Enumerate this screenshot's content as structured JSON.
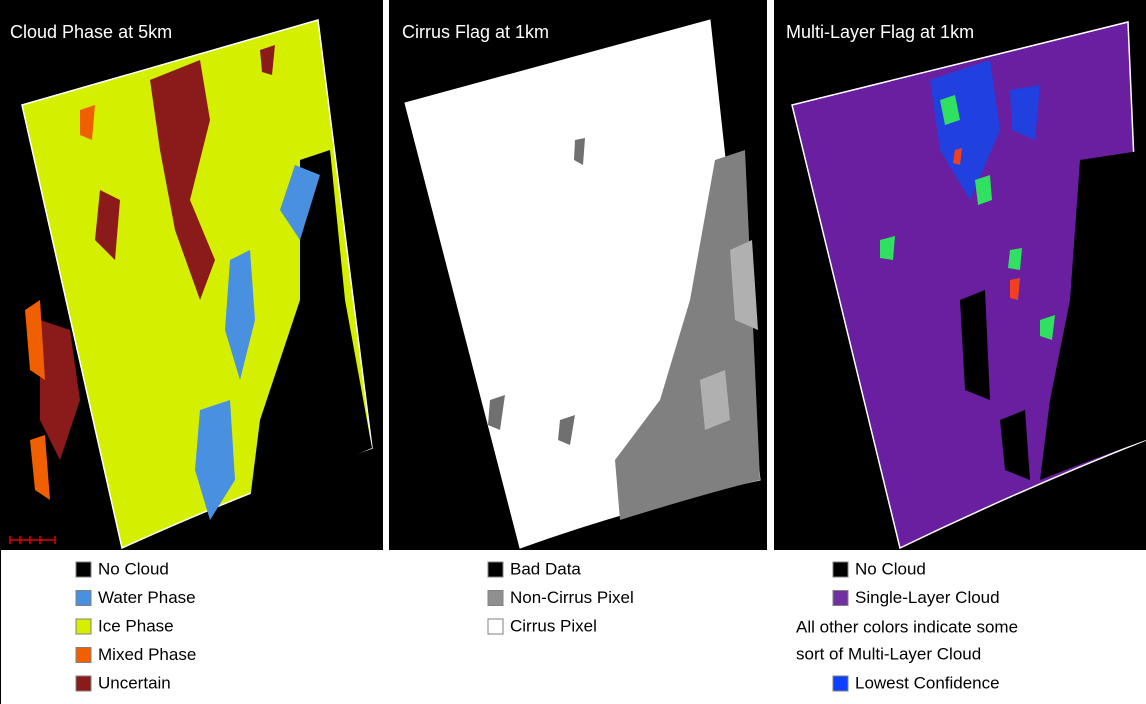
{
  "panels": [
    {
      "title": "Cloud Phase at 5km",
      "legend": [
        {
          "label": "No Cloud",
          "color": "#000000"
        },
        {
          "label": "Water Phase",
          "color": "#4a90e0"
        },
        {
          "label": "Ice Phase",
          "color": "#d4f000"
        },
        {
          "label": "Mixed Phase",
          "color": "#f06000"
        },
        {
          "label": "Uncertain",
          "color": "#8b1a1a"
        }
      ]
    },
    {
      "title": "Cirrus Flag at 1km",
      "legend": [
        {
          "label": "Bad Data",
          "color": "#000000"
        },
        {
          "label": "Non-Cirrus Pixel",
          "color": "#909090"
        },
        {
          "label": "Cirrus Pixel",
          "color": "#ffffff"
        }
      ]
    },
    {
      "title": "Multi-Layer Flag at 1km",
      "legend": [
        {
          "label": "No Cloud",
          "color": "#000000"
        },
        {
          "label": "Single-Layer Cloud",
          "color": "#7030a0"
        }
      ],
      "note": [
        "All other colors indicate some",
        "sort of Multi-Layer Cloud"
      ],
      "legend_after_note": [
        {
          "label": "Lowest Confidence",
          "color": "#1040ff"
        }
      ]
    }
  ]
}
